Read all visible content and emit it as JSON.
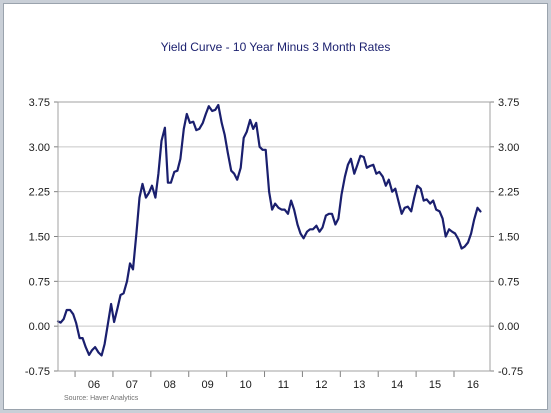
{
  "chart_data": {
    "type": "line",
    "title": "Yield Curve - 10 Year Minus 3 Month Rates",
    "source": "Source:   Haver Analytics",
    "xlabel": "",
    "ylabel": "",
    "ylim": [
      -0.75,
      3.75
    ],
    "xlim": [
      2005.55,
      2016.95
    ],
    "yticks": [
      "3.75",
      "3.00",
      "2.25",
      "1.50",
      "0.75",
      "0.00",
      "-0.75"
    ],
    "xticks": [
      "06",
      "07",
      "08",
      "09",
      "10",
      "11",
      "12",
      "13",
      "14",
      "15",
      "16"
    ],
    "grid": true,
    "line_color": "#1a1f6e",
    "series": [
      {
        "values": [
          [
            2005.55,
            0.08
          ],
          [
            2005.62,
            0.06
          ],
          [
            2005.7,
            0.12
          ],
          [
            2005.78,
            0.27
          ],
          [
            2005.87,
            0.27
          ],
          [
            2005.95,
            0.2
          ],
          [
            2006.03,
            0.05
          ],
          [
            2006.12,
            -0.2
          ],
          [
            2006.2,
            -0.2
          ],
          [
            2006.28,
            -0.35
          ],
          [
            2006.37,
            -0.48
          ],
          [
            2006.45,
            -0.4
          ],
          [
            2006.53,
            -0.35
          ],
          [
            2006.62,
            -0.44
          ],
          [
            2006.7,
            -0.49
          ],
          [
            2006.78,
            -0.3
          ],
          [
            2006.87,
            0.05
          ],
          [
            2006.95,
            0.37
          ],
          [
            2007.03,
            0.07
          ],
          [
            2007.12,
            0.3
          ],
          [
            2007.2,
            0.52
          ],
          [
            2007.28,
            0.55
          ],
          [
            2007.37,
            0.75
          ],
          [
            2007.45,
            1.05
          ],
          [
            2007.53,
            0.95
          ],
          [
            2007.62,
            1.55
          ],
          [
            2007.7,
            2.15
          ],
          [
            2007.78,
            2.38
          ],
          [
            2007.87,
            2.15
          ],
          [
            2007.95,
            2.23
          ],
          [
            2008.03,
            2.35
          ],
          [
            2008.12,
            2.15
          ],
          [
            2008.2,
            2.55
          ],
          [
            2008.28,
            3.1
          ],
          [
            2008.37,
            3.32
          ],
          [
            2008.45,
            2.4
          ],
          [
            2008.53,
            2.4
          ],
          [
            2008.62,
            2.58
          ],
          [
            2008.7,
            2.6
          ],
          [
            2008.78,
            2.8
          ],
          [
            2008.87,
            3.3
          ],
          [
            2008.95,
            3.55
          ],
          [
            2009.03,
            3.4
          ],
          [
            2009.12,
            3.42
          ],
          [
            2009.2,
            3.28
          ],
          [
            2009.28,
            3.3
          ],
          [
            2009.37,
            3.4
          ],
          [
            2009.45,
            3.55
          ],
          [
            2009.53,
            3.68
          ],
          [
            2009.62,
            3.6
          ],
          [
            2009.7,
            3.62
          ],
          [
            2009.78,
            3.7
          ],
          [
            2009.87,
            3.4
          ],
          [
            2009.95,
            3.2
          ],
          [
            2010.03,
            2.9
          ],
          [
            2010.12,
            2.6
          ],
          [
            2010.2,
            2.55
          ],
          [
            2010.28,
            2.45
          ],
          [
            2010.37,
            2.65
          ],
          [
            2010.45,
            3.15
          ],
          [
            2010.53,
            3.25
          ],
          [
            2010.62,
            3.45
          ],
          [
            2010.7,
            3.3
          ],
          [
            2010.78,
            3.4
          ],
          [
            2010.87,
            3.0
          ],
          [
            2010.95,
            2.95
          ],
          [
            2011.03,
            2.95
          ],
          [
            2011.12,
            2.25
          ],
          [
            2011.2,
            1.95
          ],
          [
            2011.28,
            2.05
          ],
          [
            2011.37,
            1.98
          ],
          [
            2011.45,
            1.95
          ],
          [
            2011.53,
            1.95
          ],
          [
            2011.62,
            1.88
          ],
          [
            2011.7,
            2.1
          ],
          [
            2011.78,
            1.95
          ],
          [
            2011.87,
            1.7
          ],
          [
            2011.95,
            1.55
          ],
          [
            2012.03,
            1.47
          ],
          [
            2012.12,
            1.58
          ],
          [
            2012.2,
            1.62
          ],
          [
            2012.28,
            1.62
          ],
          [
            2012.37,
            1.68
          ],
          [
            2012.45,
            1.58
          ],
          [
            2012.53,
            1.65
          ],
          [
            2012.62,
            1.85
          ],
          [
            2012.7,
            1.88
          ],
          [
            2012.78,
            1.88
          ],
          [
            2012.87,
            1.7
          ],
          [
            2012.95,
            1.8
          ],
          [
            2013.03,
            2.2
          ],
          [
            2013.12,
            2.5
          ],
          [
            2013.2,
            2.7
          ],
          [
            2013.28,
            2.8
          ],
          [
            2013.37,
            2.55
          ],
          [
            2013.45,
            2.7
          ],
          [
            2013.53,
            2.85
          ],
          [
            2013.62,
            2.83
          ],
          [
            2013.7,
            2.65
          ],
          [
            2013.78,
            2.68
          ],
          [
            2013.87,
            2.7
          ],
          [
            2013.95,
            2.55
          ],
          [
            2014.03,
            2.58
          ],
          [
            2014.12,
            2.5
          ],
          [
            2014.2,
            2.35
          ],
          [
            2014.28,
            2.45
          ],
          [
            2014.37,
            2.25
          ],
          [
            2014.45,
            2.3
          ],
          [
            2014.53,
            2.1
          ],
          [
            2014.62,
            1.88
          ],
          [
            2014.7,
            1.98
          ],
          [
            2014.78,
            2.0
          ],
          [
            2014.87,
            1.92
          ],
          [
            2014.95,
            2.15
          ],
          [
            2015.03,
            2.35
          ],
          [
            2015.12,
            2.3
          ],
          [
            2015.2,
            2.1
          ],
          [
            2015.28,
            2.12
          ],
          [
            2015.37,
            2.05
          ],
          [
            2015.45,
            2.1
          ],
          [
            2015.53,
            1.95
          ],
          [
            2015.62,
            1.92
          ],
          [
            2015.7,
            1.8
          ],
          [
            2015.78,
            1.5
          ],
          [
            2015.87,
            1.62
          ],
          [
            2015.95,
            1.58
          ],
          [
            2016.03,
            1.55
          ],
          [
            2016.12,
            1.45
          ],
          [
            2016.2,
            1.3
          ],
          [
            2016.28,
            1.33
          ],
          [
            2016.37,
            1.4
          ],
          [
            2016.45,
            1.55
          ],
          [
            2016.53,
            1.78
          ],
          [
            2016.62,
            1.98
          ],
          [
            2016.7,
            1.92
          ]
        ]
      }
    ]
  }
}
